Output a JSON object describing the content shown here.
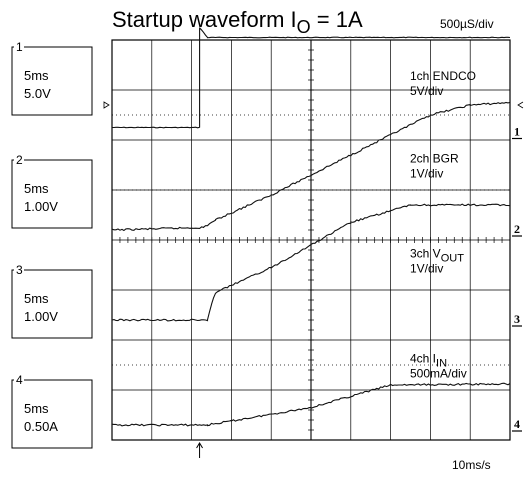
{
  "chart_data": {
    "type": "line",
    "title_main": "Startup waveform I",
    "title_sub": "O",
    "title_tail": " = 1A",
    "timebase": "500µS/div",
    "sample_rate": "10ms/s",
    "grid": true,
    "divisions": {
      "x": 10,
      "y": 8
    },
    "channels": [
      {
        "number": "1",
        "scale_time": "5ms",
        "scale_value": "5.0V",
        "label_main": "1ch ENDCO",
        "label_sub": "",
        "label_tail": "",
        "label_scale": "5V/div",
        "waveform": {
          "x": [
            0,
            2.2,
            2.2,
            2.4,
            10
          ],
          "y": [
            0.1,
            0.1,
            2.1,
            1.9,
            1.9
          ]
        }
      },
      {
        "number": "2",
        "scale_time": "5ms",
        "scale_value": "1.00V",
        "label_main": "2ch BGR",
        "label_sub": "",
        "label_tail": "",
        "label_scale": "1V/div",
        "waveform": {
          "x": [
            0,
            2.3,
            2.6,
            4,
            6,
            8,
            9,
            10
          ],
          "y": [
            0.0,
            0.05,
            0.2,
            0.7,
            1.5,
            2.3,
            2.5,
            2.55
          ]
        }
      },
      {
        "number": "3",
        "scale_time": "5ms",
        "scale_value": "1.00V",
        "label_main": "3ch V",
        "label_sub": "OUT",
        "label_tail": "",
        "label_scale": "1V/div",
        "waveform": {
          "x": [
            0,
            2.4,
            2.5,
            2.6,
            4,
            6,
            7.5,
            10
          ],
          "y": [
            0.0,
            0.0,
            0.3,
            0.55,
            1.05,
            1.95,
            2.3,
            2.3
          ]
        }
      },
      {
        "number": "4",
        "scale_time": "5ms",
        "scale_value": "0.50A",
        "label_main": "4ch I",
        "label_sub": "IN",
        "label_tail": "",
        "label_scale": "500mA/div",
        "waveform": {
          "x": [
            0,
            2.4,
            3,
            5,
            7,
            10
          ],
          "y": [
            0.0,
            0.0,
            0.08,
            0.35,
            0.8,
            0.82
          ]
        }
      }
    ]
  }
}
